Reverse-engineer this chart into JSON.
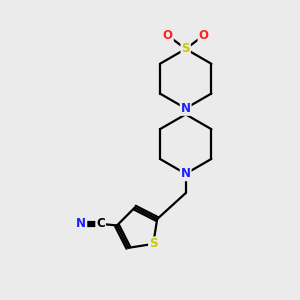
{
  "background_color": "#ebebeb",
  "bond_color": "#000000",
  "atom_colors": {
    "N": "#2020ff",
    "S": "#c8c800",
    "O": "#ff2020",
    "C": "#000000"
  },
  "line_width": 1.6,
  "figsize": [
    3.0,
    3.0
  ],
  "dpi": 100,
  "xlim": [
    0,
    10
  ],
  "ylim": [
    0,
    10
  ]
}
